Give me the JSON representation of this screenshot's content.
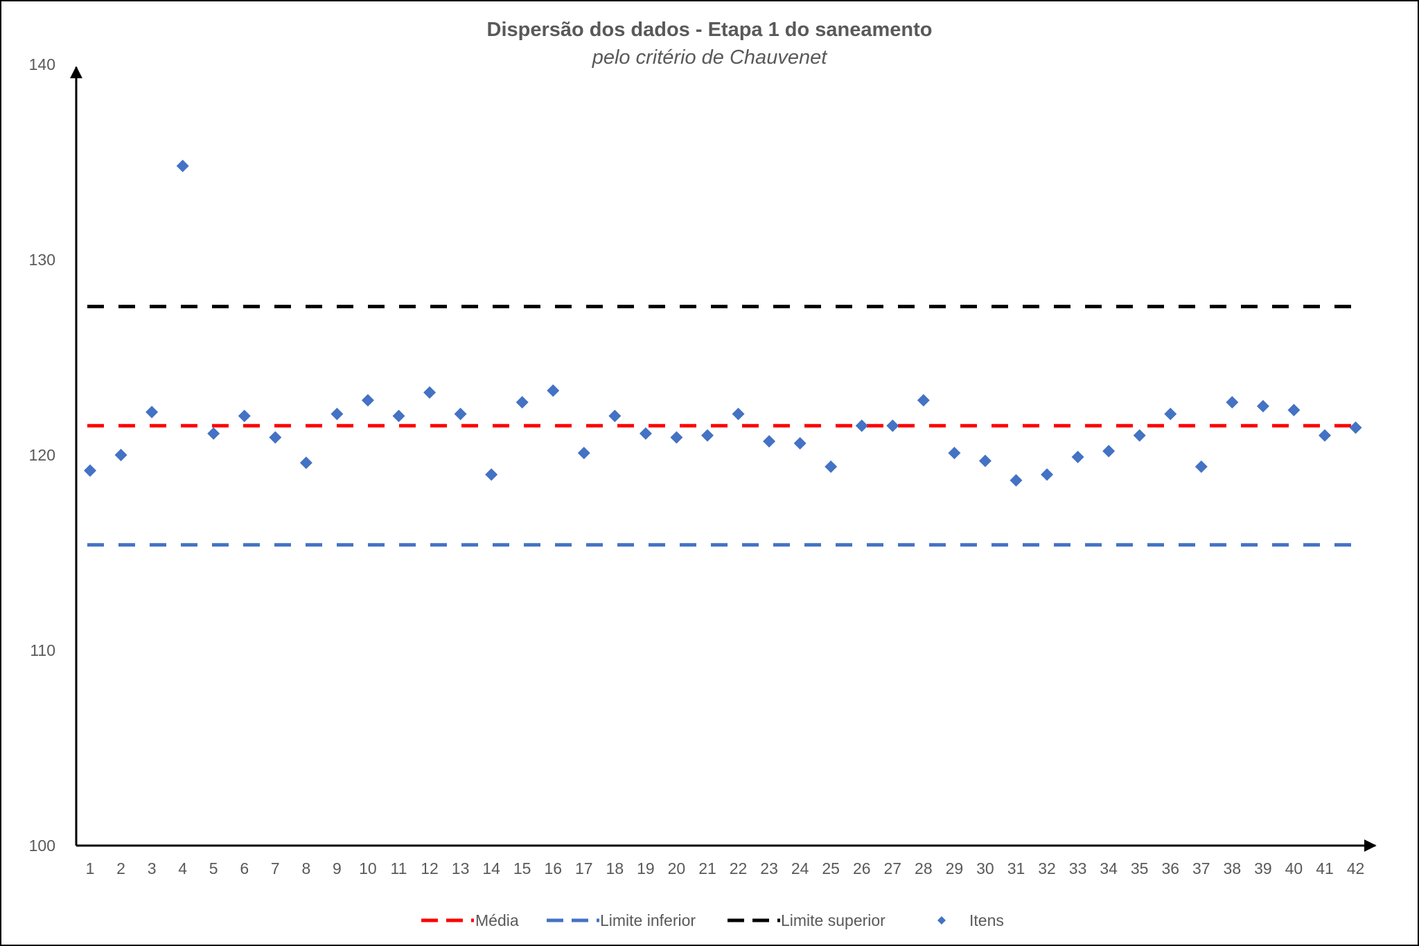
{
  "chart_data": {
    "type": "scatter",
    "title": "Dispersão dos dados - Etapa 1 do saneamento",
    "subtitle": "pelo critério de Chauvenet",
    "xlabel": "",
    "ylabel": "",
    "ylim": [
      100,
      140
    ],
    "y_ticks": [
      "100",
      "110",
      "120",
      "130",
      "140"
    ],
    "x": [
      1,
      2,
      3,
      4,
      5,
      6,
      7,
      8,
      9,
      10,
      11,
      12,
      13,
      14,
      15,
      16,
      17,
      18,
      19,
      20,
      21,
      22,
      23,
      24,
      25,
      26,
      27,
      28,
      29,
      30,
      31,
      32,
      33,
      34,
      35,
      36,
      37,
      38,
      39,
      40,
      41,
      42
    ],
    "x_ticks": [
      "1",
      "2",
      "3",
      "4",
      "5",
      "6",
      "7",
      "8",
      "9",
      "10",
      "11",
      "12",
      "13",
      "14",
      "15",
      "16",
      "17",
      "18",
      "19",
      "20",
      "21",
      "22",
      "23",
      "24",
      "25",
      "26",
      "27",
      "28",
      "29",
      "30",
      "31",
      "32",
      "33",
      "34",
      "35",
      "36",
      "37",
      "38",
      "39",
      "40",
      "41",
      "42"
    ],
    "grid": false,
    "legend_position": "bottom",
    "series": [
      {
        "name": "Média",
        "kind": "line",
        "style": "dashed",
        "color": "#ff0000",
        "y": 121.5
      },
      {
        "name": "Limite inferior",
        "kind": "line",
        "style": "dashed",
        "color": "#4472c4",
        "y": 115.4
      },
      {
        "name": "Limite superior",
        "kind": "line",
        "style": "dashed",
        "color": "#000000",
        "y": 127.6
      },
      {
        "name": "Itens",
        "kind": "scatter",
        "marker": "diamond",
        "color": "#4472c4",
        "values": [
          119.2,
          120.0,
          122.2,
          134.8,
          121.1,
          122.0,
          120.9,
          119.6,
          122.1,
          122.8,
          122.0,
          123.2,
          122.1,
          119.0,
          122.7,
          123.3,
          120.1,
          122.0,
          121.1,
          120.9,
          121.0,
          122.1,
          120.7,
          120.6,
          119.4,
          121.5,
          121.5,
          122.8,
          120.1,
          119.7,
          118.7,
          119.0,
          119.9,
          120.2,
          121.0,
          122.1,
          119.4,
          122.7,
          122.5,
          122.3,
          121.0,
          121.4
        ]
      }
    ]
  }
}
